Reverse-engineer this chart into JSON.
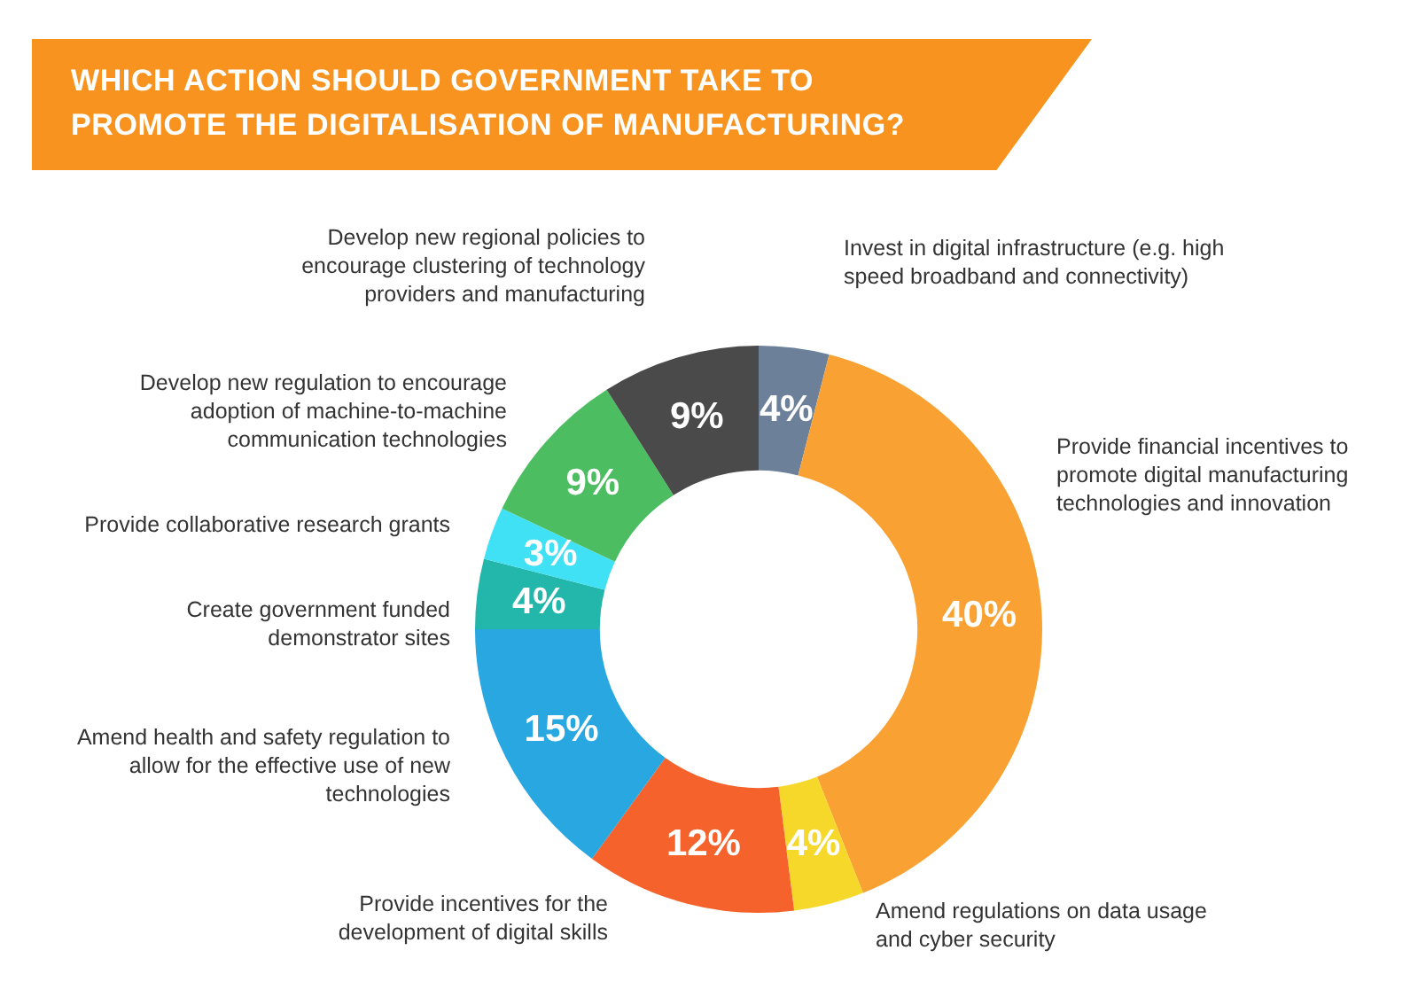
{
  "chart_data": {
    "type": "donut",
    "title": "WHICH ACTION SHOULD GOVERNMENT TAKE TO\nPROMOTE THE DIGITALISATION OF MANUFACTURING?",
    "categories": [
      "Invest in digital infrastructure (e.g. high speed broadband and connectivity)",
      "Provide financial incentives to promote digital manufacturing technologies and innovation",
      "Amend regulations on data usage and cyber security",
      "Provide incentives for the development of digital skills",
      "Amend health and safety regulation to allow for the effective use of new technologies",
      "Create government funded demonstrator sites",
      "Provide collaborative research grants",
      "Develop new regulation to encourage adoption of machine-to-machine communication technologies",
      "Develop new regional policies to encourage clustering of technology providers and manufacturing"
    ],
    "values": [
      4,
      40,
      4,
      12,
      15,
      4,
      3,
      9,
      9
    ],
    "value_labels": [
      "4%",
      "40%",
      "4%",
      "12%",
      "15%",
      "4%",
      "3%",
      "9%",
      "9%"
    ],
    "colors": [
      "#6d8099",
      "#f9a233",
      "#f6d82a",
      "#f5622b",
      "#28a7e0",
      "#23b6aa",
      "#40e0f5",
      "#4cbd61",
      "#4a4a4a"
    ]
  }
}
